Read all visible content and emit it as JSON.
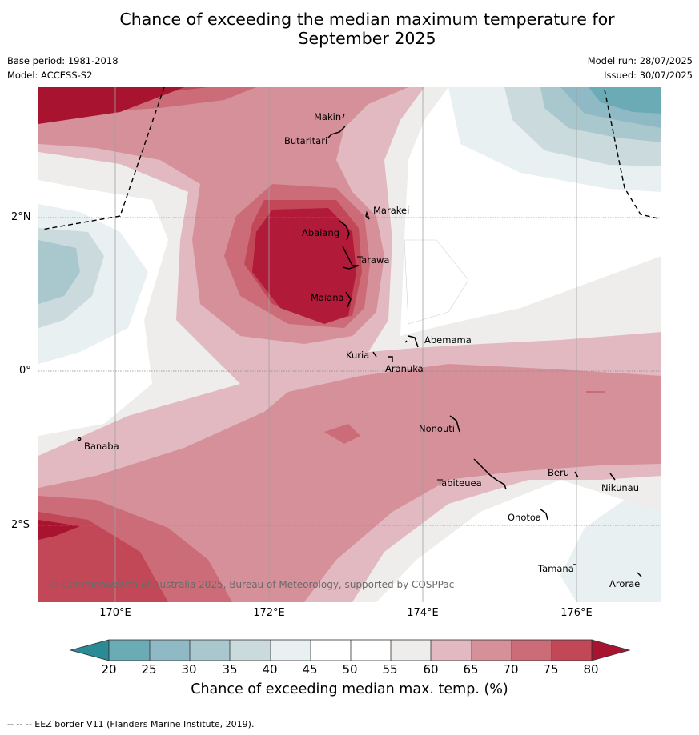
{
  "header": {
    "title_line1": "Chance of exceeding the median maximum temperature for",
    "title_line2": "September 2025",
    "base_period": "Base period: 1981-2018",
    "model": "Model: ACCESS-S2",
    "model_run": "Model run: 28/07/2025",
    "issued": "Issued: 30/07/2025"
  },
  "map": {
    "copyright": "© Commonwealth of Australia 2025, Bureau of Meteorology, supported by COSPPac",
    "x_ticks": [
      "170°E",
      "172°E",
      "174°E",
      "176°E"
    ],
    "y_ticks": [
      "2°N",
      "0°",
      "2°S"
    ],
    "places": [
      "Makin",
      "Butaritari",
      "Marakei",
      "Abaiang",
      "Tarawa",
      "Maiana",
      "Abemama",
      "Kuria",
      "Aranuka",
      "Banaba",
      "Nonouti",
      "Tabiteuea",
      "Beru",
      "Nikunau",
      "Onotoa",
      "Tamana",
      "Arorae"
    ]
  },
  "colorbar": {
    "ticks": [
      "20",
      "25",
      "30",
      "35",
      "40",
      "45",
      "50",
      "55",
      "60",
      "65",
      "70",
      "75",
      "80"
    ],
    "label": "Chance of exceeding median max. temp. (%)",
    "colors": [
      "#2a8a95",
      "#6aabb6",
      "#8fb9c4",
      "#a9c8cd",
      "#cbdadd",
      "#e9f0f2",
      "#ffffff",
      "#ffffff",
      "#eeedec",
      "#e2b9c0",
      "#d6909a",
      "#cc6c78",
      "#c24858",
      "#a8142f"
    ]
  },
  "footer": {
    "eez_note": "--  --  -- EEZ border V11 (Flanders Marine Institute, 2019)."
  }
}
